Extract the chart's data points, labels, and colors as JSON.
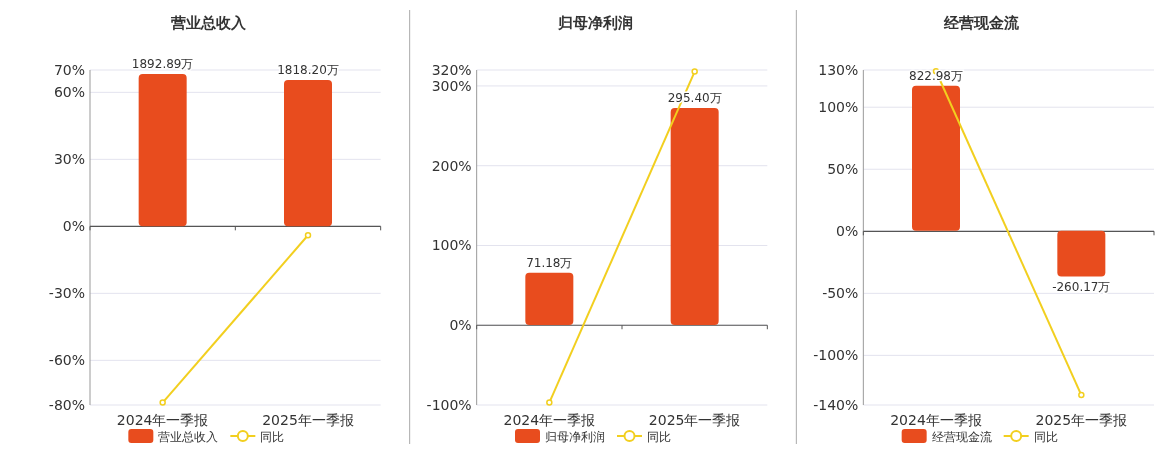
{
  "chart_data": [
    {
      "type": "bar",
      "title": "营业总收入",
      "categories": [
        "2024年一季报",
        "2025年一季报"
      ],
      "ylim": [
        -80,
        70
      ],
      "yticks": [
        {
          "value": 70,
          "label": "70%"
        },
        {
          "value": 60,
          "label": "60%"
        },
        {
          "value": 30,
          "label": "30%"
        },
        {
          "value": 0,
          "label": "0%"
        },
        {
          "value": -30,
          "label": "-30%"
        },
        {
          "value": -60,
          "label": "-60%"
        },
        {
          "value": -80,
          "label": "-80%"
        }
      ],
      "y2lim": [
        -2220,
        1943
      ],
      "grid": "y",
      "legend": "bottom",
      "series": [
        {
          "name": "营业总收入",
          "type": "bar",
          "axis": "y2",
          "color": "#e84c1e",
          "values": [
            1892.89,
            1818.2
          ],
          "value_labels": [
            "1892.89万",
            "1818.20万"
          ]
        },
        {
          "name": "同比",
          "type": "line",
          "color": "#f2cf1f",
          "marker": "circle",
          "values": [
            -78.9,
            -4.0
          ]
        }
      ]
    },
    {
      "type": "bar",
      "title": "归母净利润",
      "categories": [
        "2024年一季报",
        "2025年一季报"
      ],
      "ylim": [
        -100,
        320
      ],
      "yticks": [
        {
          "value": 320,
          "label": "320%"
        },
        {
          "value": 300,
          "label": "300%"
        },
        {
          "value": 200,
          "label": "200%"
        },
        {
          "value": 100,
          "label": "100%"
        },
        {
          "value": 0,
          "label": "0%"
        },
        {
          "value": -100,
          "label": "-100%"
        }
      ],
      "y2lim": [
        -109,
        347
      ],
      "grid": "y",
      "legend": "bottom",
      "series": [
        {
          "name": "归母净利润",
          "type": "bar",
          "axis": "y2",
          "color": "#e84c1e",
          "values": [
            71.18,
            295.4
          ],
          "value_labels": [
            "71.18万",
            "295.40万"
          ]
        },
        {
          "name": "同比",
          "type": "line",
          "color": "#f2cf1f",
          "marker": "circle",
          "values": [
            -97,
            318
          ]
        }
      ]
    },
    {
      "type": "bar",
      "title": "经营现金流",
      "categories": [
        "2024年一季报",
        "2025年一季报"
      ],
      "ylim": [
        -140,
        130
      ],
      "yticks": [
        {
          "value": 130,
          "label": "130%"
        },
        {
          "value": 100,
          "label": "100%"
        },
        {
          "value": 50,
          "label": "50%"
        },
        {
          "value": 0,
          "label": "0%"
        },
        {
          "value": -50,
          "label": "-50%"
        },
        {
          "value": -100,
          "label": "-100%"
        },
        {
          "value": -140,
          "label": "-140%"
        }
      ],
      "y2lim": [
        -990,
        912
      ],
      "grid": "y",
      "legend": "bottom",
      "series": [
        {
          "name": "经营现金流",
          "type": "bar",
          "axis": "y2",
          "color": "#e84c1e",
          "values": [
            822.98,
            -260.17
          ],
          "value_labels": [
            "822.98万",
            "-260.17万"
          ]
        },
        {
          "name": "同比",
          "type": "line",
          "color": "#f2cf1f",
          "marker": "circle",
          "values": [
            129,
            -132
          ]
        }
      ]
    }
  ]
}
